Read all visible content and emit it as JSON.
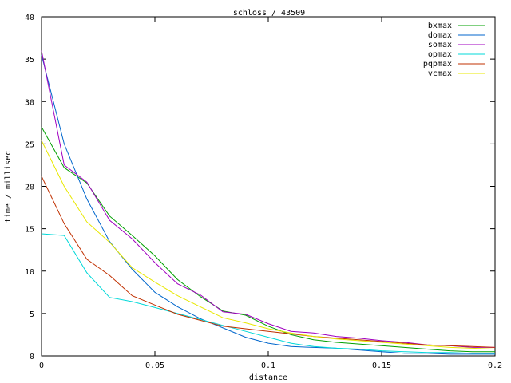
{
  "chart_data": {
    "type": "line",
    "title": "schloss / 43509",
    "xlabel": "distance",
    "ylabel": "time / millisec",
    "xlim": [
      0,
      0.2
    ],
    "ylim": [
      0,
      40
    ],
    "x_ticks": [
      0,
      0.05,
      0.1,
      0.15,
      0.2
    ],
    "x_tick_labels": [
      "0",
      "0.05",
      "0.1",
      "0.15",
      "0.2"
    ],
    "y_ticks": [
      0,
      5,
      10,
      15,
      20,
      25,
      30,
      35,
      40
    ],
    "y_tick_labels": [
      "0",
      "5",
      "10",
      "15",
      "20",
      "25",
      "30",
      "35",
      "40"
    ],
    "grid": false,
    "legend_position": "top-right",
    "x": [
      0,
      0.01,
      0.02,
      0.03,
      0.04,
      0.05,
      0.06,
      0.07,
      0.08,
      0.09,
      0.1,
      0.11,
      0.12,
      0.13,
      0.14,
      0.15,
      0.16,
      0.17,
      0.18,
      0.19,
      0.2
    ],
    "series": [
      {
        "name": "bxmax",
        "color": "#00a000",
        "values": [
          27.0,
          22.2,
          20.4,
          16.5,
          14.2,
          11.8,
          9.0,
          7.0,
          5.3,
          4.8,
          3.5,
          2.5,
          1.9,
          1.6,
          1.4,
          1.2,
          1.0,
          0.8,
          0.6,
          0.5,
          0.5
        ]
      },
      {
        "name": "domax",
        "color": "#0066cc",
        "values": [
          35.5,
          25.0,
          18.5,
          13.5,
          10.2,
          7.5,
          5.8,
          4.4,
          3.3,
          2.2,
          1.5,
          1.1,
          1.0,
          0.9,
          0.7,
          0.5,
          0.3,
          0.3,
          0.2,
          0.2,
          0.2
        ]
      },
      {
        "name": "somax",
        "color": "#a000c0",
        "values": [
          36.0,
          22.5,
          20.5,
          16.0,
          13.8,
          11.0,
          8.5,
          7.2,
          5.2,
          4.9,
          3.8,
          2.9,
          2.7,
          2.3,
          2.1,
          1.8,
          1.6,
          1.3,
          1.2,
          1.0,
          1.0
        ]
      },
      {
        "name": "opmax",
        "color": "#00d8d8",
        "values": [
          14.4,
          14.2,
          9.8,
          6.9,
          6.4,
          5.7,
          5.0,
          4.3,
          3.6,
          2.9,
          2.2,
          1.5,
          1.1,
          0.9,
          0.8,
          0.6,
          0.5,
          0.4,
          0.4,
          0.3,
          0.3
        ]
      },
      {
        "name": "pqpmax",
        "color": "#c03000",
        "values": [
          21.2,
          15.6,
          11.4,
          9.5,
          7.1,
          6.0,
          4.9,
          4.2,
          3.5,
          3.2,
          2.9,
          2.6,
          2.3,
          2.1,
          1.9,
          1.7,
          1.5,
          1.3,
          1.2,
          1.1,
          1.0
        ]
      },
      {
        "name": "vcmax",
        "color": "#e8e800",
        "values": [
          25.4,
          20.0,
          15.8,
          13.4,
          10.4,
          8.7,
          7.1,
          5.8,
          4.5,
          3.9,
          3.2,
          2.7,
          2.3,
          2.0,
          1.8,
          1.6,
          1.4,
          1.2,
          1.0,
          0.9,
          0.8
        ]
      }
    ]
  }
}
